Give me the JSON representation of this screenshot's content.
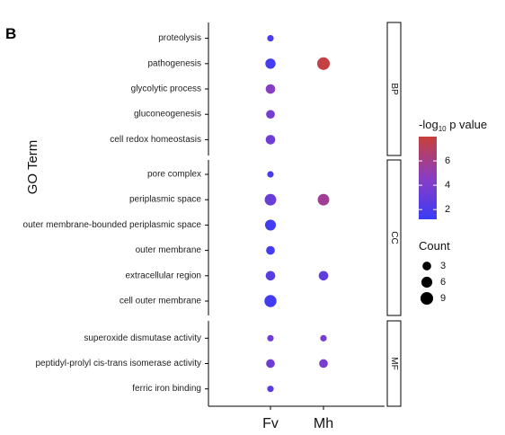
{
  "panel_label": "B",
  "chart_data": {
    "type": "scatter",
    "ylabel": "GO Term",
    "x_categories": [
      "Fv",
      "Mh"
    ],
    "facets": [
      {
        "label": "BP",
        "terms": [
          "proteolysis",
          "pathogenesis",
          "glycolytic process",
          "gluconeogenesis",
          "cell redox homeostasis"
        ]
      },
      {
        "label": "CC",
        "terms": [
          "pore complex",
          "periplasmic space",
          "outer membrane-bounded periplasmic space",
          "outer membrane",
          "extracellular region",
          "cell outer membrane"
        ]
      },
      {
        "label": "MF",
        "terms": [
          "superoxide dismutase activity",
          "peptidyl-prolyl cis-trans isomerase activity",
          "ferric iron binding"
        ]
      }
    ],
    "points": [
      {
        "term": "proteolysis",
        "x": "Fv",
        "count": 1,
        "neg_log10_p": 1.7
      },
      {
        "term": "pathogenesis",
        "x": "Fv",
        "count": 5,
        "neg_log10_p": 1.6
      },
      {
        "term": "pathogenesis",
        "x": "Mh",
        "count": 9,
        "neg_log10_p": 7.8
      },
      {
        "term": "glycolytic process",
        "x": "Fv",
        "count": 4,
        "neg_log10_p": 4.5
      },
      {
        "term": "gluconeogenesis",
        "x": "Fv",
        "count": 3,
        "neg_log10_p": 3.8
      },
      {
        "term": "cell redox homeostasis",
        "x": "Fv",
        "count": 4,
        "neg_log10_p": 3.4
      },
      {
        "term": "pore complex",
        "x": "Fv",
        "count": 1,
        "neg_log10_p": 1.8
      },
      {
        "term": "periplasmic space",
        "x": "Fv",
        "count": 7,
        "neg_log10_p": 3.2
      },
      {
        "term": "periplasmic space",
        "x": "Mh",
        "count": 7,
        "neg_log10_p": 5.8
      },
      {
        "term": "outer membrane-bounded periplasmic space",
        "x": "Fv",
        "count": 6,
        "neg_log10_p": 1.5
      },
      {
        "term": "outer membrane",
        "x": "Fv",
        "count": 3,
        "neg_log10_p": 1.6
      },
      {
        "term": "extracellular region",
        "x": "Fv",
        "count": 4,
        "neg_log10_p": 2.4
      },
      {
        "term": "extracellular region",
        "x": "Mh",
        "count": 4,
        "neg_log10_p": 2.8
      },
      {
        "term": "cell outer membrane",
        "x": "Fv",
        "count": 8,
        "neg_log10_p": 1.5
      },
      {
        "term": "superoxide dismutase activity",
        "x": "Fv",
        "count": 1,
        "neg_log10_p": 3.4
      },
      {
        "term": "superoxide dismutase activity",
        "x": "Mh",
        "count": 1,
        "neg_log10_p": 3.7
      },
      {
        "term": "peptidyl-prolyl cis-trans isomerase activity",
        "x": "Fv",
        "count": 3,
        "neg_log10_p": 3.4
      },
      {
        "term": "peptidyl-prolyl cis-trans isomerase activity",
        "x": "Mh",
        "count": 3,
        "neg_log10_p": 3.8
      },
      {
        "term": "ferric iron binding",
        "x": "Fv",
        "count": 1,
        "neg_log10_p": 2.6
      }
    ],
    "color_legend": {
      "title_prefix": "-log",
      "title_sub": "10",
      "title_suffix": "p value",
      "min": 1.2,
      "max": 8.0,
      "ticks": [
        2,
        4,
        6
      ],
      "low_color": "#3b3cf5",
      "mid_color": "#8a3dc4",
      "high_color": "#c8403a"
    },
    "size_legend": {
      "title": "Count",
      "values": [
        3,
        6,
        9
      ]
    },
    "legend_position": "right"
  }
}
